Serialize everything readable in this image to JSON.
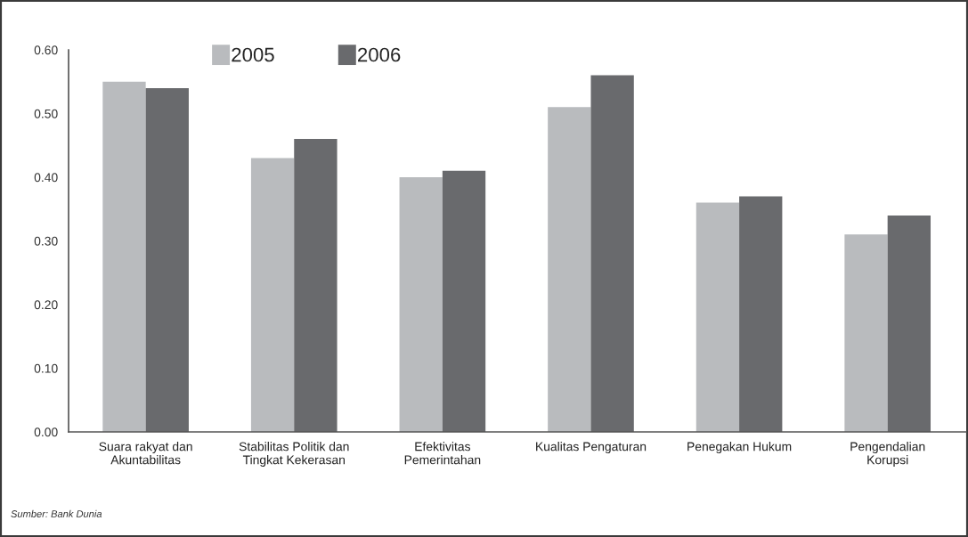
{
  "chart_data": {
    "type": "bar",
    "categories": [
      "Suara rakyat dan\nAkuntabilitas",
      "Stabilitas Politik dan\nTingkat Kekerasan",
      "Efektivitas\nPemerintahan",
      "Kualitas Pengaturan",
      "Penegakan Hukum",
      "Pengendalian\nKorupsi"
    ],
    "series": [
      {
        "name": "2005",
        "color": "#b9bbbe",
        "values": [
          0.55,
          0.43,
          0.4,
          0.51,
          0.36,
          0.31
        ]
      },
      {
        "name": "2006",
        "color": "#696a6d",
        "values": [
          0.54,
          0.46,
          0.41,
          0.56,
          0.37,
          0.34
        ]
      }
    ],
    "ylim": [
      0,
      0.6
    ],
    "yticks": [
      {
        "value": 0,
        "label": "0.00"
      },
      {
        "value": 0.1,
        "label": "0.10"
      },
      {
        "value": 0.2,
        "label": "0.20"
      },
      {
        "value": 0.3,
        "label": "0.30"
      },
      {
        "value": 0.4,
        "label": "0.40"
      },
      {
        "value": 0.5,
        "label": "0.50"
      },
      {
        "value": 0.6,
        "label": "0.60"
      }
    ],
    "grid": false,
    "legend": "top left",
    "annotations": [
      "Sumber: Bank Dunia"
    ]
  }
}
